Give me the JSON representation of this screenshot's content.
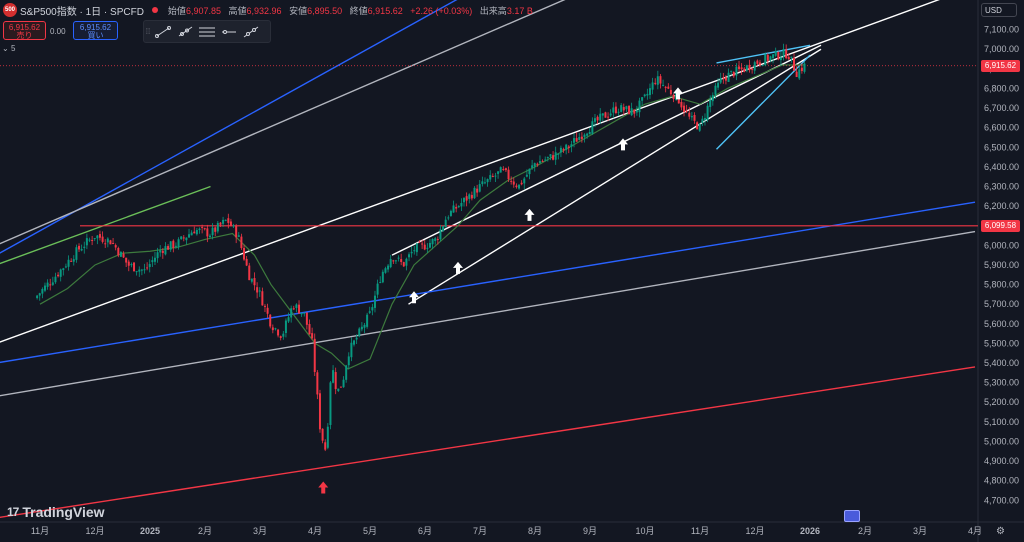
{
  "header": {
    "logo": "500",
    "symbol_title": "S&P500指数 · 1日 · SPCFD",
    "status_color": "#f23645",
    "ohlc": [
      {
        "label": "始値",
        "value": "6,907.85"
      },
      {
        "label": "高値",
        "value": "6,932.96"
      },
      {
        "label": "安値",
        "value": "6,895.50"
      },
      {
        "label": "終値",
        "value": "6,915.62"
      },
      {
        "label": "",
        "value": "+2.26 (+0.03%)"
      },
      {
        "label": "出来高",
        "value": "3.17 B"
      }
    ]
  },
  "trade": {
    "sell_price": "6,915.62",
    "sell_label": "売り",
    "spread": "0.00",
    "buy_price": "6,915.62",
    "buy_label": "買い"
  },
  "indicator": {
    "chevron": "⌄",
    "value": "5"
  },
  "toolbar": {
    "grip": "⁞⁞"
  },
  "currency": "USD",
  "branding": {
    "mark": "17",
    "name": "TradingView"
  },
  "colors": {
    "background": "#131722",
    "up": "#089981",
    "down": "#f23645",
    "ma": "#3d7a3d"
  },
  "chart_data": {
    "type": "candlestick",
    "title": "S&P500指数 · 1日 · SPCFD",
    "y_ticks": [
      4700,
      4800,
      4900,
      5000,
      5100,
      5200,
      5300,
      5400,
      5500,
      5600,
      5700,
      5800,
      5900,
      6000,
      6100,
      6200,
      6300,
      6400,
      6500,
      6600,
      6700,
      6800,
      6900,
      7000,
      7100
    ],
    "y_tick_labels": [
      "4,700.00",
      "4,800.00",
      "4,900.00",
      "5,000.00",
      "5,100.00",
      "5,200.00",
      "5,300.00",
      "5,400.00",
      "5,500.00",
      "5,600.00",
      "5,700.00",
      "5,800.00",
      "5,900.00",
      "6,000.00",
      "6,100.00",
      "6,200.00",
      "6,300.00",
      "6,400.00",
      "6,500.00",
      "6,600.00",
      "6,700.00",
      "6,800.00",
      "6,900.00",
      "7,000.00",
      "7,100.00"
    ],
    "ylim": [
      4620,
      7200
    ],
    "x_ticks": [
      {
        "label": "11月",
        "t": 0
      },
      {
        "label": "12月",
        "t": 1
      },
      {
        "label": "2025",
        "t": 2
      },
      {
        "label": "2月",
        "t": 3
      },
      {
        "label": "3月",
        "t": 4
      },
      {
        "label": "4月",
        "t": 5
      },
      {
        "label": "5月",
        "t": 6
      },
      {
        "label": "6月",
        "t": 7
      },
      {
        "label": "7月",
        "t": 8
      },
      {
        "label": "8月",
        "t": 9
      },
      {
        "label": "9月",
        "t": 10
      },
      {
        "label": "10月",
        "t": 11
      },
      {
        "label": "11月",
        "t": 12
      },
      {
        "label": "12月",
        "t": 13
      },
      {
        "label": "2026",
        "t": 14
      },
      {
        "label": "2月",
        "t": 15
      },
      {
        "label": "3月",
        "t": 16
      },
      {
        "label": "4月",
        "t": 17
      }
    ],
    "close_path": [
      [
        -0.1,
        5730
      ],
      [
        0.3,
        5850
      ],
      [
        0.7,
        5980
      ],
      [
        1.0,
        6050
      ],
      [
        1.3,
        6020
      ],
      [
        1.6,
        5900
      ],
      [
        1.9,
        5870
      ],
      [
        2.2,
        5980
      ],
      [
        2.5,
        6010
      ],
      [
        2.8,
        6080
      ],
      [
        3.1,
        6060
      ],
      [
        3.4,
        6130
      ],
      [
        3.6,
        6050
      ],
      [
        3.8,
        5850
      ],
      [
        4.0,
        5750
      ],
      [
        4.2,
        5600
      ],
      [
        4.4,
        5540
      ],
      [
        4.6,
        5700
      ],
      [
        4.8,
        5650
      ],
      [
        4.95,
        5500
      ],
      [
        5.1,
        5050
      ],
      [
        5.2,
        4950
      ],
      [
        5.3,
        5400
      ],
      [
        5.4,
        5250
      ],
      [
        5.5,
        5300
      ],
      [
        5.6,
        5450
      ],
      [
        5.8,
        5550
      ],
      [
        6.0,
        5650
      ],
      [
        6.2,
        5850
      ],
      [
        6.4,
        5950
      ],
      [
        6.6,
        5900
      ],
      [
        6.8,
        5980
      ],
      [
        7.0,
        6000
      ],
      [
        7.2,
        6030
      ],
      [
        7.4,
        6150
      ],
      [
        7.6,
        6200
      ],
      [
        7.8,
        6250
      ],
      [
        8.0,
        6300
      ],
      [
        8.2,
        6340
      ],
      [
        8.4,
        6380
      ],
      [
        8.7,
        6300
      ],
      [
        9.0,
        6420
      ],
      [
        9.3,
        6450
      ],
      [
        9.6,
        6500
      ],
      [
        9.9,
        6580
      ],
      [
        10.2,
        6650
      ],
      [
        10.5,
        6700
      ],
      [
        10.8,
        6680
      ],
      [
        11.0,
        6750
      ],
      [
        11.2,
        6850
      ],
      [
        11.4,
        6800
      ],
      [
        11.6,
        6750
      ],
      [
        11.8,
        6650
      ],
      [
        12.0,
        6600
      ],
      [
        12.2,
        6750
      ],
      [
        12.4,
        6850
      ],
      [
        12.6,
        6880
      ],
      [
        12.8,
        6900
      ],
      [
        13.0,
        6930
      ],
      [
        13.2,
        6950
      ],
      [
        13.4,
        6970
      ],
      [
        13.6,
        6980
      ],
      [
        13.75,
        6880
      ],
      [
        13.9,
        6915.62
      ]
    ],
    "ma_path": [
      [
        0.0,
        5700
      ],
      [
        0.5,
        5780
      ],
      [
        1.0,
        5900
      ],
      [
        1.5,
        5960
      ],
      [
        2.0,
        5970
      ],
      [
        2.5,
        5990
      ],
      [
        3.0,
        6030
      ],
      [
        3.5,
        6060
      ],
      [
        3.9,
        5950
      ],
      [
        4.2,
        5800
      ],
      [
        4.6,
        5650
      ],
      [
        5.0,
        5500
      ],
      [
        5.3,
        5450
      ],
      [
        5.6,
        5370
      ],
      [
        6.0,
        5420
      ],
      [
        6.4,
        5700
      ],
      [
        6.8,
        5900
      ],
      [
        7.2,
        6000
      ],
      [
        7.6,
        6100
      ],
      [
        8.0,
        6230
      ],
      [
        8.5,
        6330
      ],
      [
        9.0,
        6400
      ],
      [
        9.5,
        6480
      ],
      [
        10.0,
        6560
      ],
      [
        10.5,
        6640
      ],
      [
        11.0,
        6720
      ],
      [
        11.5,
        6760
      ],
      [
        12.0,
        6720
      ],
      [
        12.5,
        6800
      ],
      [
        13.0,
        6860
      ],
      [
        13.5,
        6920
      ],
      [
        13.9,
        6920
      ]
    ],
    "horizontal_level": 6099.58,
    "horizontal_level_label": "6,099.58",
    "last_price": 6915.62,
    "last_price_label": "6,915.62",
    "arrow_markers": [
      {
        "t": 5.15,
        "price": 4760,
        "dir": "up",
        "color": "#f23645"
      },
      {
        "t": 6.8,
        "price": 5730,
        "dir": "up",
        "color": "#ffffff"
      },
      {
        "t": 7.6,
        "price": 5880,
        "dir": "up",
        "color": "#ffffff"
      },
      {
        "t": 8.9,
        "price": 6150,
        "dir": "up",
        "color": "#ffffff"
      },
      {
        "t": 10.6,
        "price": 6510,
        "dir": "up",
        "color": "#ffffff"
      },
      {
        "t": 11.6,
        "price": 6770,
        "dir": "up",
        "color": "#ffffff"
      }
    ],
    "trend_lines": [
      {
        "color": "#ffffff",
        "t1": -0.8,
        "p1": 5500,
        "t2": 17.0,
        "p2": 7320
      },
      {
        "color": "#ffffff",
        "t1": 6.4,
        "p1": 5950,
        "t2": 14.2,
        "p2": 7020
      },
      {
        "color": "#ffffff",
        "t1": 6.7,
        "p1": 5700,
        "t2": 14.2,
        "p2": 7000
      },
      {
        "color": "#b2b5be",
        "t1": -0.8,
        "p1": 5230,
        "t2": 17.0,
        "p2": 6070
      },
      {
        "color": "#f23645",
        "t1": -0.8,
        "p1": 4610,
        "t2": 17.0,
        "p2": 5380
      },
      {
        "color": "#2962ff",
        "t1": -0.8,
        "p1": 5400,
        "t2": 17.0,
        "p2": 6220
      },
      {
        "color": "#2962ff",
        "t1": -0.8,
        "p1": 5950,
        "t2": 8.2,
        "p2": 7350
      },
      {
        "color": "#b2b5be",
        "t1": -0.8,
        "p1": 6000,
        "t2": 11.0,
        "p2": 7430
      },
      {
        "color": "#6bbf59",
        "t1": -0.8,
        "p1": 5900,
        "t2": 3.1,
        "p2": 6300
      },
      {
        "color": "#4fc3f7",
        "t1": 12.3,
        "p1": 6930,
        "t2": 14.0,
        "p2": 7020
      },
      {
        "color": "#4fc3f7",
        "t1": 12.3,
        "p1": 6490,
        "t2": 14.0,
        "p2": 6970
      }
    ]
  }
}
